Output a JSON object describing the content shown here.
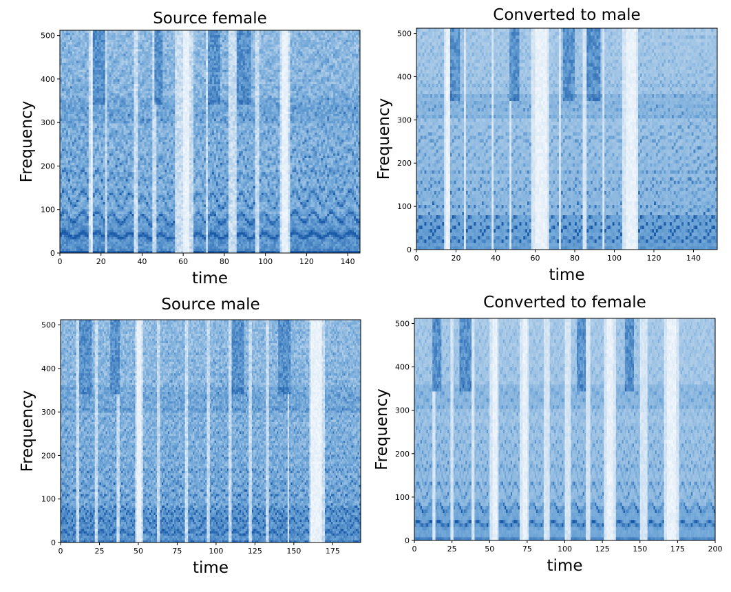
{
  "figure": {
    "colormap": {
      "low": "#ffffff",
      "mid": "#6ba3d6",
      "high": "#1a5aa8"
    }
  },
  "chart_data": [
    {
      "id": "source-female",
      "type": "heatmap",
      "title": "Source female",
      "xlabel": "time",
      "ylabel": "Frequency",
      "xlim": [
        0,
        146
      ],
      "ylim": [
        0,
        512
      ],
      "xticks": [
        0,
        20,
        40,
        60,
        80,
        100,
        120,
        140
      ],
      "yticks": [
        0,
        100,
        200,
        300,
        400,
        500
      ],
      "seed": 11,
      "texture": "noisy",
      "segments": [
        [
          0,
          14,
          0.95,
          42
        ],
        [
          16,
          22,
          0.85,
          42
        ],
        [
          23,
          36,
          0.85,
          40
        ],
        [
          38,
          45,
          0.8,
          38
        ],
        [
          47,
          56,
          0.8,
          38
        ],
        [
          65,
          71,
          0.75,
          40
        ],
        [
          72,
          82,
          0.9,
          40
        ],
        [
          86,
          95,
          0.85,
          40
        ],
        [
          97,
          107,
          0.8,
          40
        ],
        [
          112,
          146,
          0.9,
          42
        ]
      ],
      "gaps": [
        [
          60,
          63
        ],
        [
          15,
          16
        ],
        [
          108,
          111
        ]
      ],
      "bright_upper": [
        [
          16,
          22
        ],
        [
          46,
          50
        ],
        [
          72,
          78
        ],
        [
          86,
          93
        ]
      ]
    },
    {
      "id": "converted-male",
      "type": "heatmap",
      "title": "Converted to male",
      "xlabel": "time",
      "ylabel": "Frequency",
      "xlim": [
        0,
        152
      ],
      "ylim": [
        0,
        512
      ],
      "xticks": [
        0,
        20,
        40,
        60,
        80,
        100,
        120,
        140
      ],
      "yticks": [
        0,
        100,
        200,
        300,
        400,
        500
      ],
      "seed": 23,
      "texture": "smooth",
      "segments": [
        [
          0,
          14,
          0.95,
          20
        ],
        [
          17,
          24,
          0.9,
          20
        ],
        [
          25,
          38,
          0.85,
          20
        ],
        [
          39,
          47,
          0.8,
          20
        ],
        [
          48,
          58,
          0.85,
          20
        ],
        [
          67,
          72,
          0.75,
          20
        ],
        [
          73,
          84,
          0.9,
          20
        ],
        [
          86,
          94,
          0.85,
          20
        ],
        [
          95,
          104,
          0.8,
          20
        ],
        [
          112,
          152,
          0.9,
          20
        ]
      ],
      "gaps": [
        [
          60,
          66
        ],
        [
          15,
          17
        ],
        [
          106,
          111
        ]
      ],
      "bright_upper": [
        [
          17,
          22
        ],
        [
          47,
          52
        ],
        [
          74,
          80
        ],
        [
          86,
          93
        ]
      ]
    },
    {
      "id": "source-male",
      "type": "heatmap",
      "title": "Source male",
      "xlabel": "time",
      "ylabel": "Frequency",
      "xlim": [
        0,
        193
      ],
      "ylim": [
        0,
        512
      ],
      "xticks": [
        0,
        25,
        50,
        75,
        100,
        125,
        150,
        175
      ],
      "yticks": [
        0,
        100,
        200,
        300,
        400,
        500
      ],
      "seed": 37,
      "texture": "noisy",
      "segments": [
        [
          0,
          10,
          0.9,
          22
        ],
        [
          12,
          22,
          0.9,
          22
        ],
        [
          24,
          36,
          0.85,
          22
        ],
        [
          38,
          48,
          0.8,
          22
        ],
        [
          53,
          62,
          0.75,
          22
        ],
        [
          64,
          80,
          0.85,
          22
        ],
        [
          82,
          94,
          0.8,
          22
        ],
        [
          96,
          108,
          0.85,
          22
        ],
        [
          110,
          121,
          0.9,
          22
        ],
        [
          123,
          132,
          0.8,
          22
        ],
        [
          134,
          146,
          0.85,
          22
        ],
        [
          147,
          160,
          0.8,
          22
        ],
        [
          170,
          193,
          0.85,
          22
        ]
      ],
      "gaps": [
        [
          49,
          52
        ],
        [
          161,
          168
        ]
      ],
      "bright_upper": [
        [
          12,
          20
        ],
        [
          32,
          38
        ],
        [
          110,
          118
        ],
        [
          140,
          148
        ]
      ]
    },
    {
      "id": "converted-female",
      "type": "heatmap",
      "title": "Converted to female",
      "xlabel": "time",
      "ylabel": "Frequency",
      "xlim": [
        0,
        200
      ],
      "ylim": [
        0,
        512
      ],
      "xticks": [
        0,
        25,
        50,
        75,
        100,
        125,
        150,
        175,
        200
      ],
      "yticks": [
        0,
        100,
        200,
        300,
        400,
        500
      ],
      "seed": 53,
      "texture": "smooth",
      "segments": [
        [
          0,
          12,
          0.85,
          38
        ],
        [
          14,
          24,
          0.85,
          38
        ],
        [
          26,
          38,
          0.8,
          38
        ],
        [
          40,
          50,
          0.75,
          38
        ],
        [
          56,
          70,
          0.8,
          38
        ],
        [
          76,
          86,
          0.7,
          38
        ],
        [
          90,
          100,
          0.75,
          38
        ],
        [
          104,
          114,
          0.8,
          38
        ],
        [
          117,
          126,
          0.75,
          38
        ],
        [
          134,
          150,
          0.8,
          38
        ],
        [
          155,
          166,
          0.75,
          38
        ],
        [
          176,
          200,
          0.7,
          38
        ]
      ],
      "gaps": [
        [
          52,
          55
        ],
        [
          72,
          75
        ],
        [
          128,
          132
        ],
        [
          168,
          174
        ]
      ],
      "bright_upper": [
        [
          12,
          18
        ],
        [
          30,
          38
        ],
        [
          108,
          114
        ],
        [
          140,
          146
        ]
      ]
    }
  ]
}
